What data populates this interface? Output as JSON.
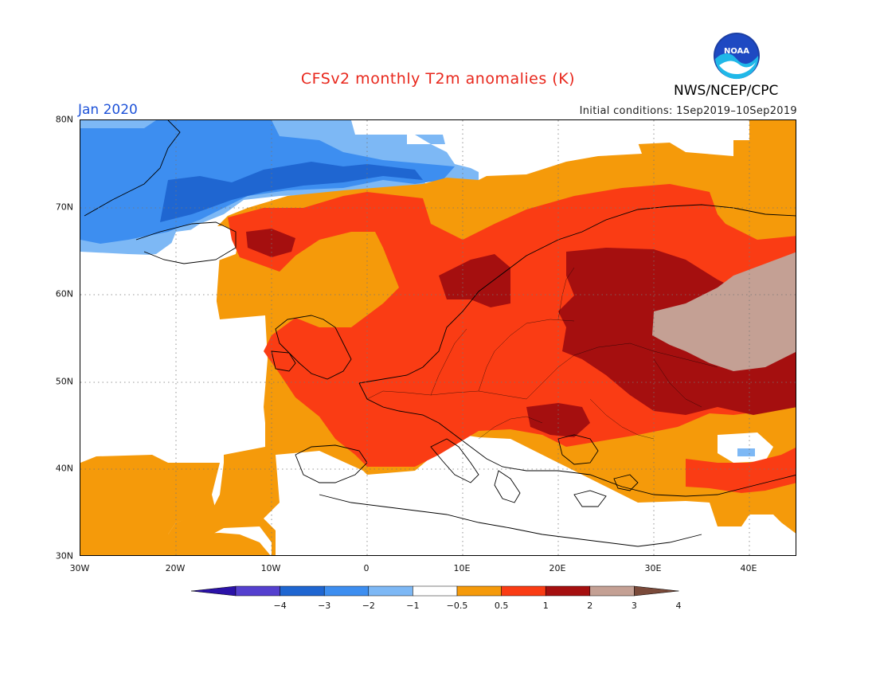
{
  "header": {
    "title": "CFSv2 monthly T2m anomalies (K)",
    "agency": "NWS/NCEP/CPC",
    "logo_text": "NOAA",
    "month": "Jan 2020",
    "initial_conditions": "Initial conditions: 1Sep2019–10Sep2019"
  },
  "map": {
    "lat_labels": [
      "80N",
      "70N",
      "60N",
      "50N",
      "40N",
      "30N"
    ],
    "lon_labels": [
      "30W",
      "20W",
      "10W",
      "0",
      "10E",
      "20E",
      "30E",
      "40E"
    ],
    "region": "Europe / North Atlantic",
    "lat_range": [
      30,
      80
    ],
    "lon_range": [
      -30,
      45
    ]
  },
  "colorbar": {
    "labels": [
      "−4",
      "−3",
      "−2",
      "−1",
      "−0.5",
      "0.5",
      "1",
      "2",
      "3",
      "4"
    ],
    "colors": [
      "#2b12a8",
      "#5540cf",
      "#1f66d1",
      "#3d8ef0",
      "#7db8f5",
      "#ffffff",
      "#f59a0a",
      "#fa3c14",
      "#a50f0f",
      "#c4a094",
      "#7a4a3a"
    ]
  },
  "colors": {
    "warm_1": "#f59a0a",
    "warm_2": "#fa3c14",
    "warm_3": "#a50f0f",
    "warm_4": "#c4a094",
    "cool_1": "#7db8f5",
    "cool_2": "#3d8ef0",
    "cool_3": "#1f66d1",
    "title_red": "#e8271c",
    "month_blue": "#1d52d8"
  }
}
